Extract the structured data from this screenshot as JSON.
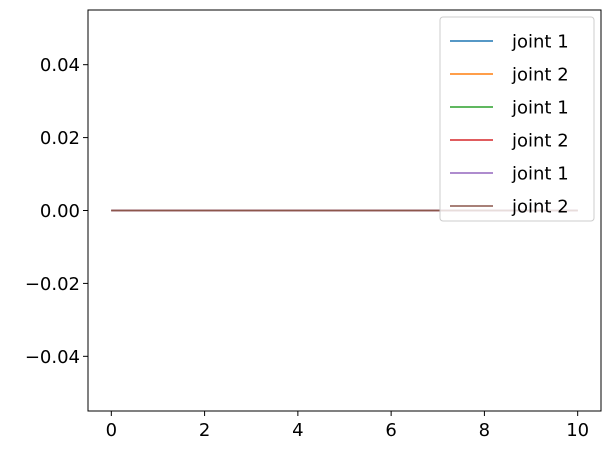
{
  "chart_data": {
    "type": "line",
    "title": "",
    "xlabel": "",
    "ylabel": "",
    "xlim": [
      -0.5,
      10.5
    ],
    "ylim": [
      -0.055,
      0.055
    ],
    "x_ticks": [
      0,
      2,
      4,
      6,
      8,
      10
    ],
    "x_tick_labels": [
      "0",
      "2",
      "4",
      "6",
      "8",
      "10"
    ],
    "y_ticks": [
      -0.04,
      -0.02,
      0.0,
      0.02,
      0.04
    ],
    "y_tick_labels": [
      "−0.04",
      "−0.02",
      "0.00",
      "0.02",
      "0.04"
    ],
    "grid": false,
    "legend_position": "top-right",
    "series": [
      {
        "name": "joint 1",
        "color": "#1f77b4",
        "x": [
          0,
          10
        ],
        "y": [
          0,
          0
        ]
      },
      {
        "name": "joint 2",
        "color": "#ff7f0e",
        "x": [
          0,
          10
        ],
        "y": [
          0,
          0
        ]
      },
      {
        "name": "joint 1",
        "color": "#2ca02c",
        "x": [
          0,
          10
        ],
        "y": [
          0,
          0
        ]
      },
      {
        "name": "joint 2",
        "color": "#d62728",
        "x": [
          0,
          10
        ],
        "y": [
          0,
          0
        ]
      },
      {
        "name": "joint 1",
        "color": "#9467bd",
        "x": [
          0,
          10
        ],
        "y": [
          0,
          0
        ]
      },
      {
        "name": "joint 2",
        "color": "#8c564b",
        "x": [
          0,
          10
        ],
        "y": [
          0,
          0
        ]
      }
    ]
  }
}
